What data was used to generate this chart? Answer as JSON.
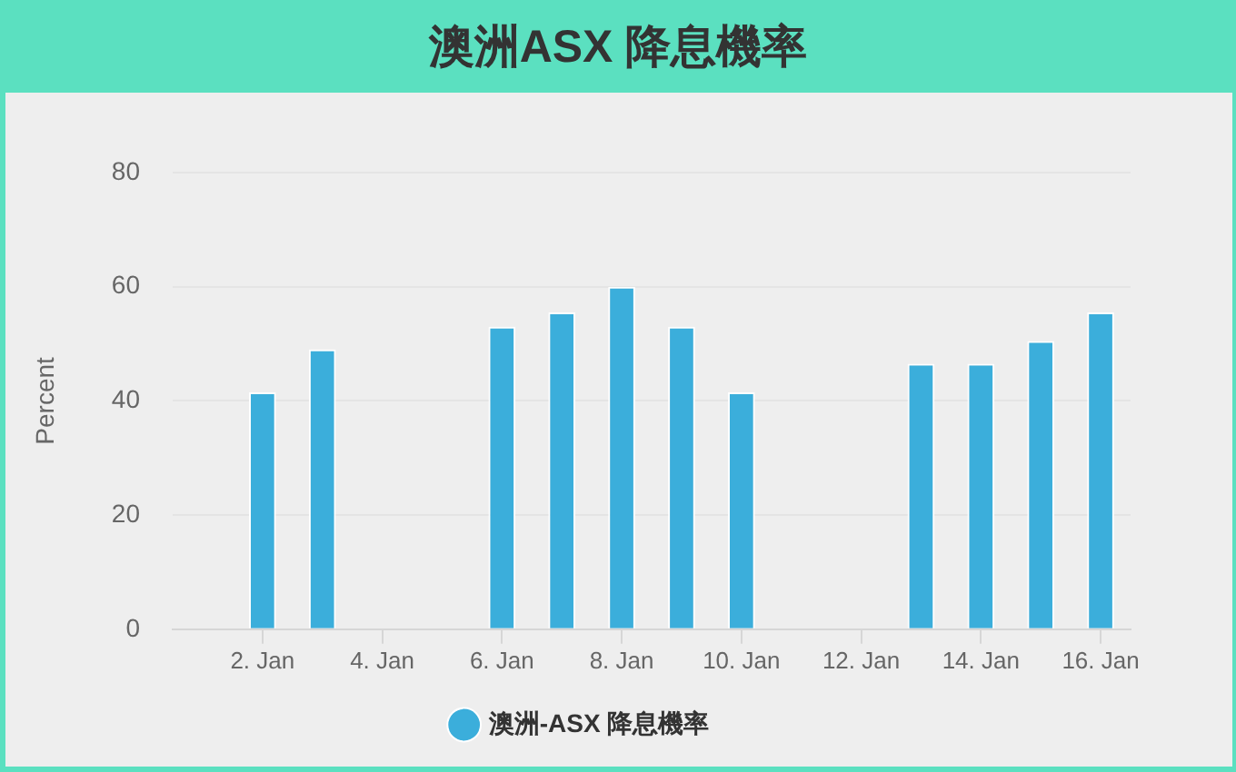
{
  "chart_data": {
    "type": "bar",
    "title": "澳洲ASX 降息機率",
    "categories": [
      null,
      "2. Jan",
      null,
      "4. Jan",
      null,
      "6. Jan",
      null,
      "8. Jan",
      null,
      "10. Jan",
      null,
      "12. Jan",
      null,
      "14. Jan",
      null,
      "16. Jan"
    ],
    "series": [
      {
        "name": "澳洲-ASX 降息機率",
        "color": "#3baedb",
        "values": [
          null,
          41.5,
          49,
          null,
          null,
          53,
          55.5,
          60,
          53,
          41.5,
          null,
          null,
          46.5,
          46.5,
          50.5,
          55.5
        ]
      }
    ],
    "ylabel": "Percent",
    "ylim": [
      0,
      80
    ],
    "yticks": [
      0,
      20,
      40,
      60,
      80
    ],
    "grid": "y",
    "legend": "bottom"
  }
}
